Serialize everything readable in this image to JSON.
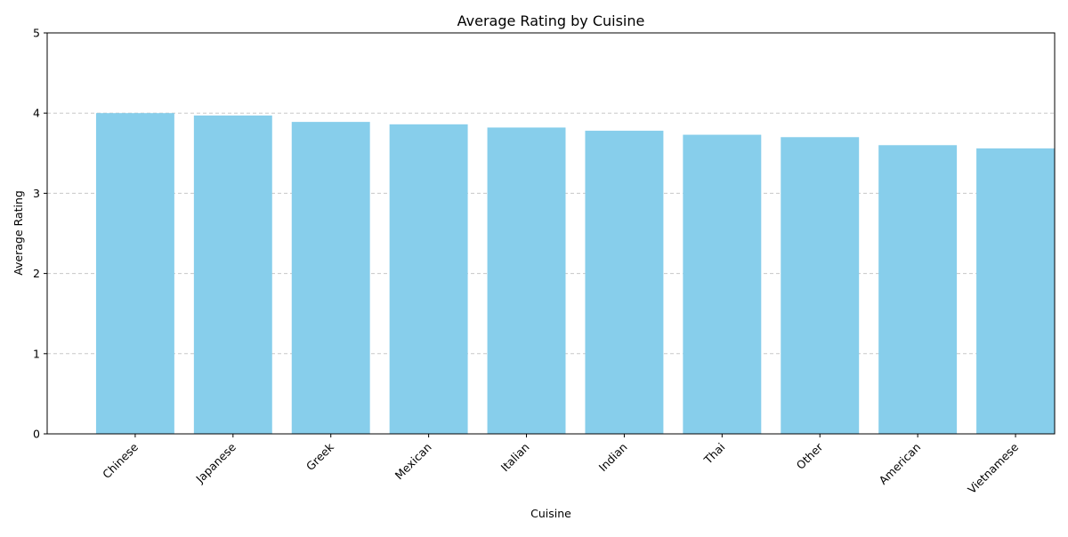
{
  "colors": {
    "bar": "#87ceeb",
    "grid": "#c8c8c8",
    "axis": "#000000"
  },
  "chart_data": {
    "type": "bar",
    "title": "Average Rating by Cuisine",
    "xlabel": "Cuisine",
    "ylabel": "Average Rating",
    "categories": [
      "Chinese",
      "Japanese",
      "Greek",
      "Mexican",
      "Italian",
      "Indian",
      "Thai",
      "Other",
      "American",
      "Vietnamese"
    ],
    "values": [
      4.0,
      3.97,
      3.89,
      3.86,
      3.82,
      3.78,
      3.73,
      3.7,
      3.6,
      3.56
    ],
    "ylim": [
      0,
      5
    ],
    "yticks": [
      0,
      1,
      2,
      3,
      4,
      5
    ],
    "grid": "y-dashed",
    "legend": "none"
  }
}
